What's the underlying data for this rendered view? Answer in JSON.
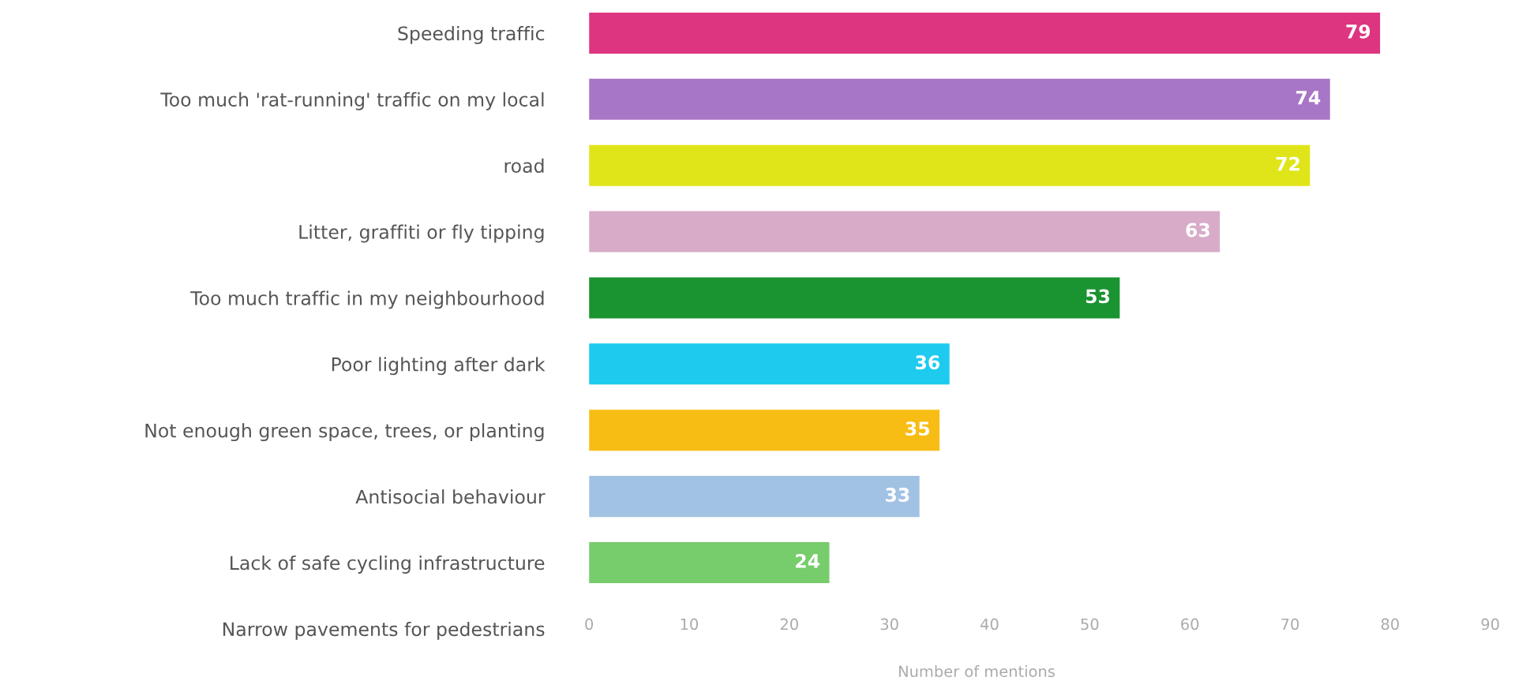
{
  "chart_data": {
    "type": "bar",
    "orientation": "horizontal",
    "xlabel": "Number of mentions",
    "categories": [
      "Speeding traffic",
      "Too much 'rat-running' traffic on my local",
      "road",
      "Litter, graffiti or fly tipping",
      "Too much traffic in my neighbourhood",
      "Poor lighting after dark",
      "Not enough green space, trees, or planting",
      "Antisocial behaviour",
      "Lack of safe cycling infrastructure",
      "Narrow pavements for pedestrians"
    ],
    "values": [
      79,
      74,
      72,
      63,
      53,
      36,
      35,
      33,
      24,
      null
    ],
    "colors": [
      "#dd3580",
      "#a876c6",
      "#e0e51a",
      "#d8acc8",
      "#1a9331",
      "#1ecbef",
      "#f8bd14",
      "#a2c2e4",
      "#77cc6c",
      "#cccccc"
    ],
    "xlim": [
      0,
      90
    ],
    "xticks": [
      0,
      10,
      20,
      30,
      40,
      50,
      60,
      70,
      80,
      90
    ],
    "data_labels": true,
    "grid": false,
    "legend": false
  }
}
